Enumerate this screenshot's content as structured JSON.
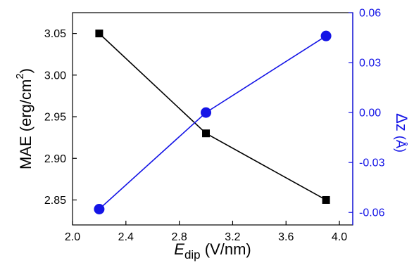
{
  "chart_data": {
    "type": "line",
    "x": [
      2.2,
      3.0,
      3.9
    ],
    "xlim": [
      2.0,
      4.1
    ],
    "x_ticks": [
      2.0,
      2.4,
      2.8,
      3.2,
      3.6,
      4.0
    ],
    "x_tick_labels": [
      "2.0",
      "2.4",
      "2.8",
      "3.2",
      "3.6",
      "4.0"
    ],
    "xlabel": {
      "main": "E",
      "sub": "dip",
      "rest": " (V/nm)"
    },
    "left_axis": {
      "label": {
        "main": "MAE (erg/cm",
        "sup": "2",
        "rest": ")"
      },
      "ylim": [
        2.82,
        3.075
      ],
      "ticks": [
        2.85,
        2.9,
        2.95,
        3.0,
        3.05
      ],
      "tick_labels": [
        "2.85",
        "2.90",
        "2.95",
        "3.00",
        "3.05"
      ],
      "color": "#000000"
    },
    "right_axis": {
      "label": {
        "main": "Δz",
        "rest": "(Å)"
      },
      "ylim": [
        -0.0675,
        0.06
      ],
      "ticks": [
        -0.06,
        -0.03,
        0.0,
        0.03,
        0.06
      ],
      "tick_labels": [
        "-0.06",
        "-0.03",
        "0.00",
        "0.03",
        "0.06"
      ],
      "color": "#1414e6"
    },
    "series": [
      {
        "axis": "left",
        "marker": "square",
        "color": "#000000",
        "values": [
          3.05,
          2.93,
          2.85
        ]
      },
      {
        "axis": "right",
        "marker": "circle",
        "color": "#1414e6",
        "values": [
          -0.058,
          0.0,
          0.046
        ]
      }
    ]
  }
}
